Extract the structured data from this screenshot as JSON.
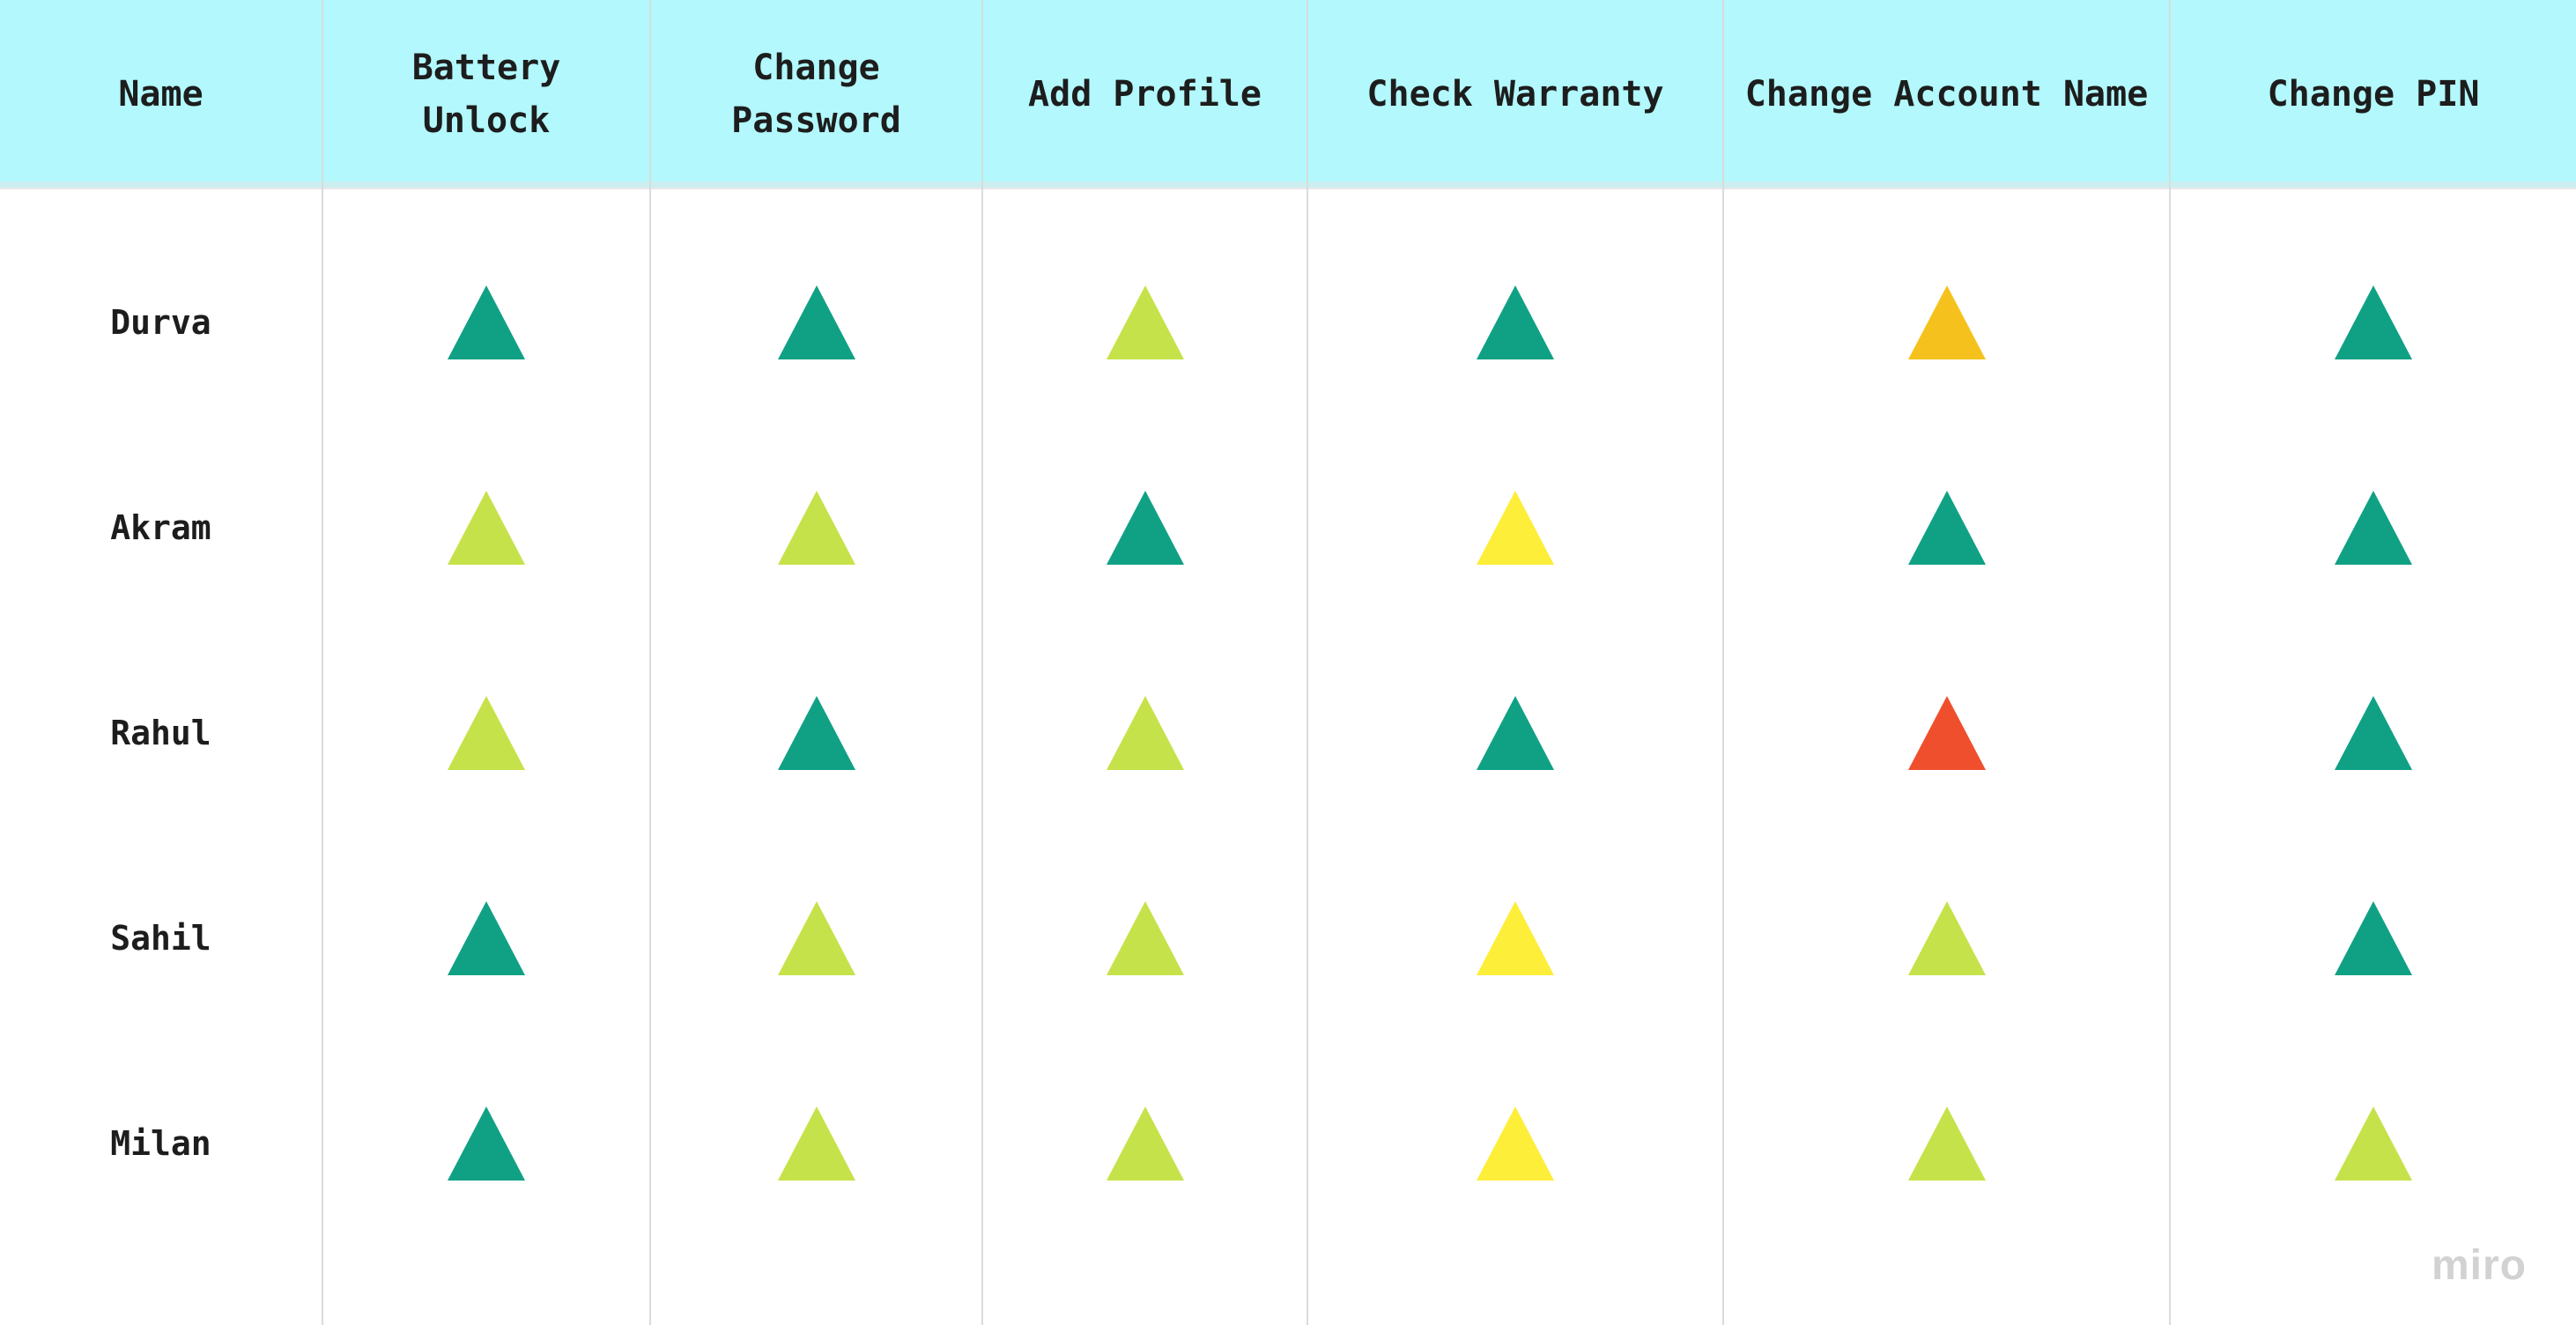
{
  "watermark": "miro",
  "colors": {
    "header_bg": "#b2f8fc",
    "teal": "#10a185",
    "lime": "#c6e24a",
    "yellow": "#fdee3a",
    "amber": "#f5c21d",
    "red": "#f04f2e"
  },
  "chart_data": {
    "type": "table",
    "title": "",
    "marker": "triangle-up",
    "columns": [
      "Name",
      "Battery Unlock",
      "Change Password",
      "Add Profile",
      "Check Warranty",
      "Change Account Name",
      "Change PIN"
    ],
    "rows": [
      {
        "name": "Durva",
        "values": [
          "teal",
          "teal",
          "lime",
          "teal",
          "amber",
          "teal"
        ]
      },
      {
        "name": "Akram",
        "values": [
          "lime",
          "lime",
          "teal",
          "yellow",
          "teal",
          "teal"
        ]
      },
      {
        "name": "Rahul",
        "values": [
          "lime",
          "teal",
          "lime",
          "teal",
          "red",
          "teal"
        ]
      },
      {
        "name": "Sahil",
        "values": [
          "teal",
          "lime",
          "lime",
          "yellow",
          "lime",
          "teal"
        ]
      },
      {
        "name": "Milan",
        "values": [
          "teal",
          "lime",
          "lime",
          "yellow",
          "lime",
          "lime"
        ]
      }
    ]
  }
}
